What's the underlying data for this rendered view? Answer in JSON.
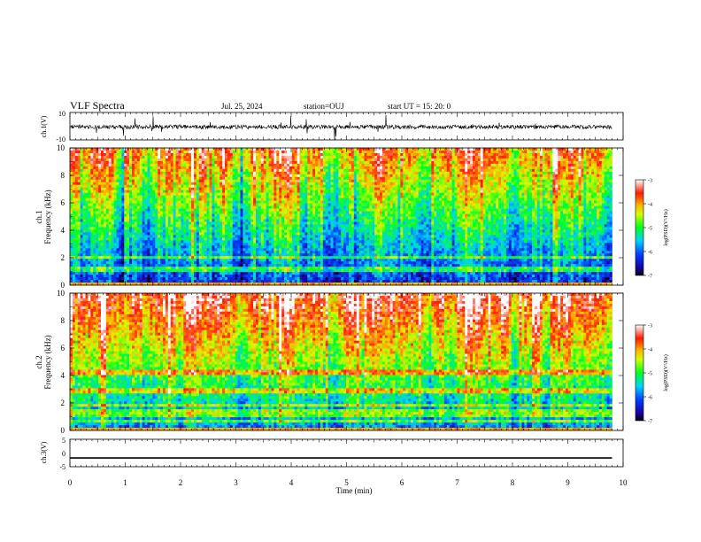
{
  "header": {
    "title": "VLF Spectra",
    "date": "Jul. 25, 2024",
    "station": "station=OUJ",
    "start": "start UT =  15: 20: 0"
  },
  "chart_data": [
    {
      "type": "line",
      "panel": "ch1-waveform",
      "ylabel": "ch.1(V)",
      "ylim": [
        -10,
        10
      ],
      "ytick_labels": [
        "10",
        "-10"
      ],
      "xlim": [
        0,
        10
      ],
      "description_series": {
        "baseline": -0.5,
        "noise_amplitude": 3,
        "spike_amplitude": 9
      }
    },
    {
      "type": "heatmap",
      "panel": "ch1-spectrogram",
      "ylabel_top": "ch.1",
      "ylabel": "Frequency (kHz)",
      "ylim": [
        0,
        10
      ],
      "ytick_labels": [
        "0",
        "2",
        "4",
        "6",
        "8",
        "10"
      ],
      "xlim": [
        0,
        10
      ],
      "data_end_min": 9.8,
      "colorbar": {
        "label": "log(PSD)(V²/Hz)",
        "range": [
          -7,
          -3
        ],
        "tick_labels": [
          "-3",
          "-4",
          "-5",
          "-6",
          "-7"
        ]
      }
    },
    {
      "type": "heatmap",
      "panel": "ch2-spectrogram",
      "ylabel_top": "ch.2",
      "ylabel": "Frequency (kHz)",
      "ylim": [
        0,
        10
      ],
      "ytick_labels": [
        "0",
        "2",
        "4",
        "6",
        "8",
        "10"
      ],
      "xlim": [
        0,
        10
      ],
      "data_end_min": 9.8,
      "colorbar": {
        "label": "log(PSD)(V²/Hz)",
        "range": [
          -7,
          -3
        ],
        "tick_labels": [
          "-3",
          "-4",
          "-5",
          "-6",
          "-7"
        ]
      }
    },
    {
      "type": "line",
      "panel": "ch3-waveform",
      "ylabel": "ch.3(V)",
      "ylim": [
        -5,
        5
      ],
      "ytick_labels": [
        "5",
        "0",
        "-5"
      ],
      "xlim": [
        0,
        10
      ],
      "xlabel": "Time (min)",
      "xtick_labels": [
        "0",
        "1",
        "2",
        "3",
        "4",
        "5",
        "6",
        "7",
        "8",
        "9",
        "10"
      ],
      "series": [
        {
          "x": [
            0,
            9.8
          ],
          "values": [
            -1.8,
            -1.8
          ]
        }
      ]
    }
  ]
}
